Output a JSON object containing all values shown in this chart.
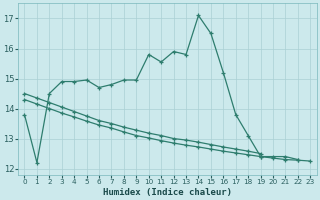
{
  "bg_color": "#cce9ec",
  "grid_color": "#aad0d4",
  "line_color": "#2e7d6e",
  "xlabel": "Humidex (Indice chaleur)",
  "xlim": [
    -0.5,
    23.5
  ],
  "ylim": [
    11.8,
    17.5
  ],
  "yticks": [
    12,
    13,
    14,
    15,
    16,
    17
  ],
  "xticks": [
    0,
    1,
    2,
    3,
    4,
    5,
    6,
    7,
    8,
    9,
    10,
    11,
    12,
    13,
    14,
    15,
    16,
    17,
    18,
    19,
    20,
    21,
    22,
    23
  ],
  "line1_x": [
    0,
    1,
    2,
    3,
    4,
    5,
    6,
    7,
    8,
    9,
    10,
    11,
    12,
    13,
    14,
    15,
    16,
    17,
    18,
    19,
    20,
    21,
    22
  ],
  "line1_y": [
    13.8,
    12.2,
    14.5,
    14.9,
    14.9,
    14.95,
    14.7,
    14.8,
    14.95,
    14.95,
    15.8,
    15.55,
    15.9,
    15.8,
    17.1,
    16.5,
    15.2,
    13.8,
    13.1,
    12.4,
    12.4,
    12.4,
    12.3
  ],
  "line2_x": [
    0,
    1,
    2,
    3,
    4,
    5,
    6,
    7,
    8,
    9,
    10,
    11,
    12,
    13,
    14,
    15,
    16,
    17,
    18,
    19
  ],
  "line2_y": [
    14.5,
    14.35,
    14.2,
    14.05,
    13.9,
    13.75,
    13.6,
    13.5,
    13.38,
    13.28,
    13.18,
    13.1,
    13.0,
    12.95,
    12.88,
    12.8,
    12.72,
    12.65,
    12.58,
    12.5
  ],
  "line3_x": [
    0,
    1,
    2,
    3,
    4,
    5,
    6,
    7,
    8,
    9,
    10,
    11,
    12,
    13,
    14,
    15,
    16,
    17,
    18,
    19,
    20,
    21,
    22,
    23
  ],
  "line3_y": [
    14.3,
    14.15,
    14.0,
    13.85,
    13.72,
    13.58,
    13.45,
    13.35,
    13.22,
    13.1,
    13.02,
    12.93,
    12.85,
    12.78,
    12.72,
    12.65,
    12.58,
    12.52,
    12.46,
    12.4,
    12.35,
    12.3,
    12.28,
    12.25
  ]
}
